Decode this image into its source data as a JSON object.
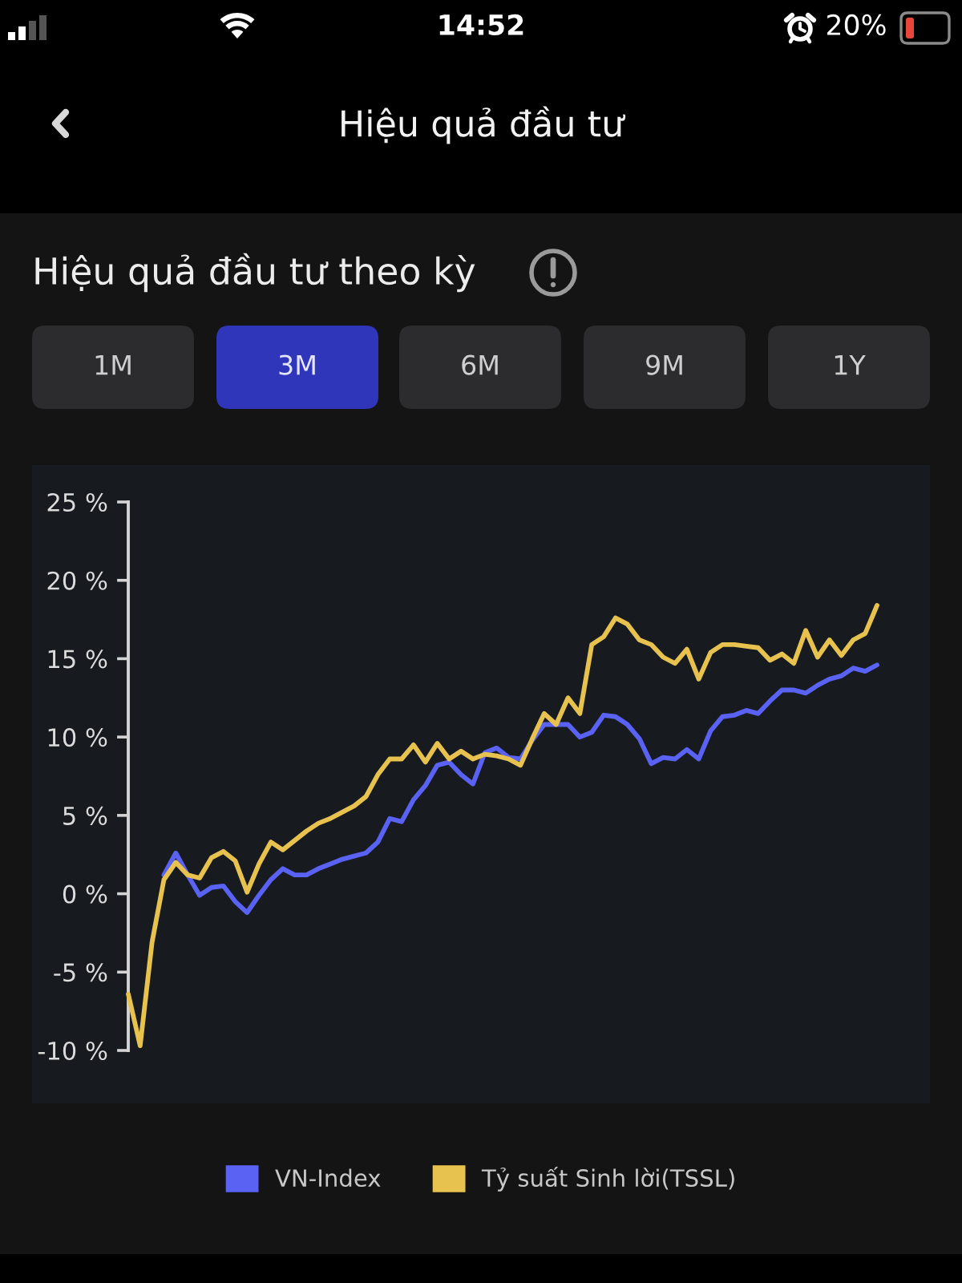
{
  "chart_data": {
    "type": "line",
    "title": "Hiệu quả đầu tư theo kỳ",
    "annotations": [
      "Hiệu quả đầu tư",
      "1M",
      "3M",
      "6M",
      "9M",
      "1Y",
      "14:52",
      "20%"
    ],
    "categories": [
      null,
      null,
      null,
      null,
      null,
      null,
      null,
      null,
      null,
      null,
      null,
      null,
      null,
      null,
      null,
      null,
      null,
      null,
      null,
      null,
      null,
      null,
      null,
      null,
      null,
      null,
      null,
      null,
      null,
      null,
      null,
      null,
      null,
      null,
      null,
      null,
      null,
      null,
      null,
      null,
      null,
      null,
      null,
      null,
      null,
      null,
      null,
      null,
      null,
      null,
      null,
      null,
      null,
      null,
      null,
      null,
      null,
      null,
      null,
      null,
      null,
      null,
      null,
      null
    ],
    "series": [
      {
        "name": "VN-Index",
        "color": "#5a62f4",
        "values": [
          null,
          null,
          null,
          1.2,
          2.6,
          1.2,
          -0.1,
          0.4,
          0.5,
          -0.5,
          -1.2,
          -0.1,
          0.9,
          1.6,
          1.2,
          1.2,
          1.6,
          1.9,
          2.2,
          2.4,
          2.6,
          3.3,
          4.8,
          4.6,
          6.0,
          6.9,
          8.2,
          8.4,
          7.6,
          7.0,
          9.0,
          9.3,
          8.7,
          8.6,
          9.8,
          10.8,
          10.8,
          10.8,
          10.0,
          10.3,
          11.4,
          11.3,
          10.8,
          9.9,
          8.3,
          8.7,
          8.6,
          9.2,
          8.6,
          10.4,
          11.3,
          11.4,
          11.7,
          11.5,
          12.3,
          13.0,
          13.0,
          12.8,
          13.3,
          13.7,
          13.9,
          14.4,
          14.2,
          14.6
        ]
      },
      {
        "name": "Tỷ suất Sinh lời(TSSL)",
        "color": "#e8c24e",
        "values": [
          -6.4,
          -9.7,
          -3.1,
          0.9,
          2.0,
          1.2,
          1.0,
          2.3,
          2.7,
          2.1,
          0.1,
          1.9,
          3.3,
          2.8,
          3.4,
          4.0,
          4.5,
          4.8,
          5.2,
          5.6,
          6.2,
          7.6,
          8.6,
          8.6,
          9.5,
          8.4,
          9.6,
          8.6,
          9.1,
          8.6,
          8.9,
          8.8,
          8.6,
          8.2,
          9.9,
          11.5,
          10.8,
          12.5,
          11.5,
          15.9,
          16.4,
          17.6,
          17.2,
          16.2,
          15.9,
          15.1,
          14.7,
          15.6,
          13.7,
          15.4,
          15.9,
          15.9,
          15.8,
          15.7,
          14.9,
          15.3,
          14.7,
          16.8,
          15.1,
          16.2,
          15.2,
          16.2,
          16.6,
          18.4
        ]
      }
    ],
    "ylim": [
      -10,
      25
    ],
    "yticks": [
      {
        "value": -10,
        "label": "-10 %"
      },
      {
        "value": -5,
        "label": "-5 %"
      },
      {
        "value": 0,
        "label": "0 %"
      },
      {
        "value": 5,
        "label": "5 %"
      },
      {
        "value": 10,
        "label": "10 %"
      },
      {
        "value": 15,
        "label": "15 %"
      },
      {
        "value": 20,
        "label": "20 %"
      },
      {
        "value": 25,
        "label": "25 %"
      }
    ],
    "tick_labels": "y",
    "legend": "bottom",
    "line_style": "solid"
  }
}
